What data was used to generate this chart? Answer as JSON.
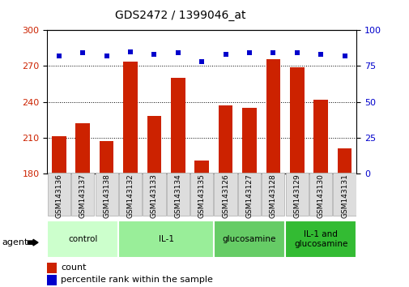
{
  "title": "GDS2472 / 1399046_at",
  "categories": [
    "GSM143136",
    "GSM143137",
    "GSM143138",
    "GSM143132",
    "GSM143133",
    "GSM143134",
    "GSM143135",
    "GSM143126",
    "GSM143127",
    "GSM143128",
    "GSM143129",
    "GSM143130",
    "GSM143131"
  ],
  "bar_values": [
    211,
    222,
    207,
    274,
    228,
    260,
    191,
    237,
    235,
    276,
    269,
    242,
    201
  ],
  "percentile_values": [
    82,
    84,
    82,
    85,
    83,
    84,
    78,
    83,
    84,
    84,
    84,
    83,
    82
  ],
  "bar_color": "#cc2200",
  "dot_color": "#0000cc",
  "ylim_left": [
    180,
    300
  ],
  "ylim_right": [
    0,
    100
  ],
  "yticks_left": [
    180,
    210,
    240,
    270,
    300
  ],
  "yticks_right": [
    0,
    25,
    50,
    75,
    100
  ],
  "groups": [
    {
      "label": "control",
      "indices": [
        0,
        1,
        2
      ],
      "color": "#ccffcc"
    },
    {
      "label": "IL-1",
      "indices": [
        3,
        4,
        5,
        6
      ],
      "color": "#99ee99"
    },
    {
      "label": "glucosamine",
      "indices": [
        7,
        8,
        9
      ],
      "color": "#66cc66"
    },
    {
      "label": "IL-1 and\nglucosamine",
      "indices": [
        10,
        11,
        12
      ],
      "color": "#33bb33"
    }
  ],
  "agent_label": "agent",
  "legend_count_label": "count",
  "legend_pct_label": "percentile rank within the sample",
  "bar_width": 0.6,
  "tick_label_color_left": "#cc2200",
  "tick_label_color_right": "#0000cc"
}
